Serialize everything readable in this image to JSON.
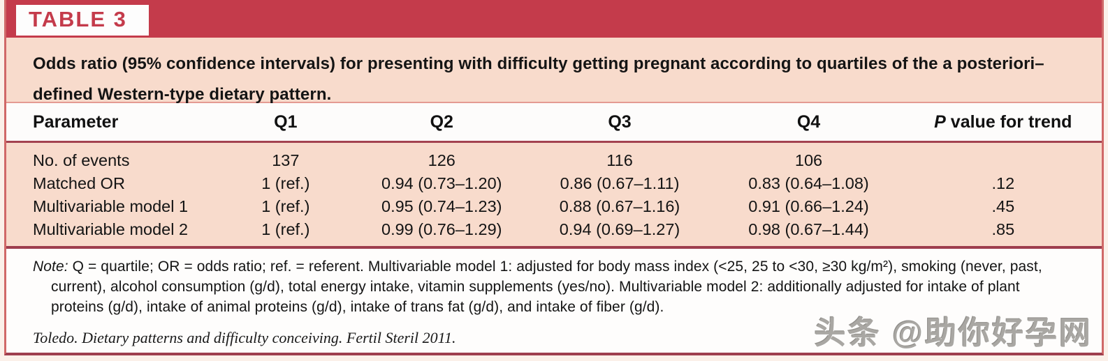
{
  "table_label": "TABLE 3",
  "title": "Odds ratio (95% confidence intervals) for presenting with difficulty getting pregnant according to quartiles of the a posteriori–defined Western-type dietary pattern.",
  "chart_data": {
    "type": "table",
    "title": "Odds ratio (95% confidence intervals) for presenting with difficulty getting pregnant according to quartiles of the a posteriori–defined Western-type dietary pattern.",
    "columns": [
      "Parameter",
      "Q1",
      "Q2",
      "Q3",
      "Q4",
      "P value for trend"
    ],
    "rows": [
      [
        "No. of events",
        "137",
        "126",
        "116",
        "106",
        ""
      ],
      [
        "Matched OR",
        "1 (ref.)",
        "0.94 (0.73–1.20)",
        "0.86 (0.67–1.11)",
        "0.83 (0.64–1.08)",
        ".12"
      ],
      [
        "Multivariable model 1",
        "1 (ref.)",
        "0.95 (0.74–1.23)",
        "0.88 (0.67–1.16)",
        "0.91 (0.66–1.24)",
        ".45"
      ],
      [
        "Multivariable model 2",
        "1 (ref.)",
        "0.99 (0.76–1.29)",
        "0.94 (0.69–1.27)",
        "0.98 (0.67–1.44)",
        ".85"
      ]
    ]
  },
  "header": {
    "parameter": "Parameter",
    "q1": "Q1",
    "q2": "Q2",
    "q3": "Q3",
    "q4": "Q4",
    "p_italic": "P",
    "p_rest": " value for trend"
  },
  "rows": [
    {
      "parameter": "No. of events",
      "q1": "137",
      "q2": "126",
      "q3": "116",
      "q4": "106",
      "p": ""
    },
    {
      "parameter": "Matched OR",
      "q1": "1 (ref.)",
      "q2": "0.94 (0.73–1.20)",
      "q3": "0.86 (0.67–1.11)",
      "q4": "0.83 (0.64–1.08)",
      "p": ".12"
    },
    {
      "parameter": "Multivariable model 1",
      "q1": "1 (ref.)",
      "q2": "0.95 (0.74–1.23)",
      "q3": "0.88 (0.67–1.16)",
      "q4": "0.91 (0.66–1.24)",
      "p": ".45"
    },
    {
      "parameter": "Multivariable model 2",
      "q1": "1 (ref.)",
      "q2": "0.99 (0.76–1.29)",
      "q3": "0.94 (0.69–1.27)",
      "q4": "0.98 (0.67–1.44)",
      "p": ".85"
    }
  ],
  "note": {
    "label": "Note:",
    "text": " Q = quartile; OR = odds ratio; ref. = referent. Multivariable model 1: adjusted for body mass index (<25, 25 to <30, ≥30 kg/m²), smoking (never, past, current), alcohol consumption (g/d), total energy intake, vitamin supplements (yes/no). Multivariable model 2: additionally adjusted for intake of plant proteins (g/d), intake of animal proteins (g/d), intake of trans fat (g/d), and intake of fiber (g/d)."
  },
  "citation": "Toledo. Dietary patterns and difficulty conceiving. Fertil Steril 2011.",
  "watermark": "头条 @助你好孕网",
  "colors": {
    "banner_red": "#C43B4B",
    "body_salmon": "#F8DBCC",
    "rule_maroon": "#9E3E4E",
    "rule_light": "#E49B92",
    "label_red": "#C43B4B"
  }
}
